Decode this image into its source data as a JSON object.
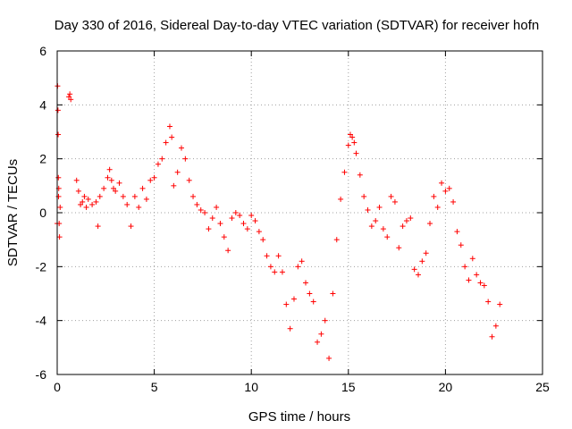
{
  "chart_data": {
    "type": "scatter",
    "title": "Day 330 of 2016, Sidereal Day-to-day VTEC variation (SDTVAR) for receiver hofn",
    "xlabel": "GPS time / hours",
    "ylabel": "SDTVAR / TECUs",
    "xlim": [
      0,
      25
    ],
    "ylim": [
      -6,
      6
    ],
    "xticks": [
      "0",
      "5",
      "10",
      "15",
      "20",
      "25"
    ],
    "yticks": [
      "-6",
      "-4",
      "-2",
      "0",
      "2",
      "4",
      "6"
    ],
    "grid": true,
    "marker": "plus",
    "series_color": "#ff0000",
    "series": [
      {
        "name": "SDTVAR",
        "x": [
          0.0,
          0.02,
          0.04,
          0.05,
          0.06,
          0.07,
          0.08,
          0.1,
          0.12,
          0.15,
          0.6,
          0.65,
          0.7,
          1.0,
          1.1,
          1.2,
          1.3,
          1.4,
          1.5,
          1.6,
          1.8,
          2.0,
          2.1,
          2.2,
          2.4,
          2.6,
          2.7,
          2.8,
          2.9,
          3.0,
          3.2,
          3.4,
          3.6,
          3.8,
          4.0,
          4.2,
          4.4,
          4.6,
          4.8,
          5.0,
          5.2,
          5.4,
          5.6,
          5.8,
          5.9,
          6.0,
          6.2,
          6.4,
          6.6,
          6.8,
          7.0,
          7.2,
          7.4,
          7.6,
          7.8,
          8.0,
          8.2,
          8.4,
          8.6,
          8.8,
          9.0,
          9.2,
          9.4,
          9.6,
          9.8,
          10.0,
          10.2,
          10.4,
          10.6,
          10.8,
          11.0,
          11.2,
          11.4,
          11.6,
          11.8,
          12.0,
          12.2,
          12.4,
          12.6,
          12.8,
          13.0,
          13.2,
          13.4,
          13.6,
          13.8,
          14.0,
          14.2,
          14.4,
          14.6,
          14.8,
          15.0,
          15.1,
          15.2,
          15.3,
          15.4,
          15.6,
          15.8,
          16.0,
          16.2,
          16.4,
          16.6,
          16.8,
          17.0,
          17.2,
          17.4,
          17.6,
          17.8,
          18.0,
          18.2,
          18.4,
          18.6,
          18.8,
          19.0,
          19.2,
          19.4,
          19.6,
          19.8,
          20.0,
          20.2,
          20.4,
          20.6,
          20.8,
          21.0,
          21.2,
          21.4,
          21.6,
          21.8,
          22.0,
          22.2,
          22.4,
          22.6,
          22.8
        ],
        "y": [
          -0.4,
          4.7,
          3.8,
          2.9,
          1.3,
          0.6,
          0.9,
          -0.4,
          -0.9,
          0.2,
          4.3,
          4.4,
          4.2,
          1.2,
          0.8,
          0.3,
          0.4,
          0.6,
          0.2,
          0.5,
          0.3,
          0.4,
          -0.5,
          0.6,
          0.9,
          1.3,
          1.6,
          1.2,
          0.9,
          0.8,
          1.1,
          0.6,
          0.3,
          -0.5,
          0.6,
          0.2,
          0.9,
          0.5,
          1.2,
          1.3,
          1.8,
          2.0,
          2.6,
          3.2,
          2.8,
          1.0,
          1.5,
          2.4,
          2.0,
          1.2,
          0.6,
          0.3,
          0.1,
          0.0,
          -0.6,
          -0.2,
          0.2,
          -0.4,
          -0.9,
          -1.4,
          -0.2,
          0.0,
          -0.1,
          -0.4,
          -0.6,
          -0.1,
          -0.3,
          -0.7,
          -1.0,
          -1.6,
          -2.0,
          -2.2,
          -1.6,
          -2.2,
          -3.4,
          -4.3,
          -3.2,
          -2.0,
          -1.8,
          -2.6,
          -3.0,
          -3.3,
          -4.8,
          -4.5,
          -4.0,
          -5.4,
          -3.0,
          -1.0,
          0.5,
          1.5,
          2.5,
          2.9,
          2.8,
          2.6,
          2.2,
          1.4,
          0.6,
          0.1,
          -0.5,
          -0.3,
          0.2,
          -0.6,
          -0.9,
          0.6,
          0.4,
          -1.3,
          -0.5,
          -0.3,
          -0.2,
          -2.1,
          -2.3,
          -1.8,
          -1.5,
          -0.4,
          0.6,
          0.2,
          1.1,
          0.8,
          0.9,
          0.4,
          -0.7,
          -1.2,
          -2.0,
          -2.5,
          -1.7,
          -2.3,
          -2.6,
          -2.7,
          -3.3,
          -4.6,
          -4.2,
          -3.4
        ]
      }
    ]
  }
}
